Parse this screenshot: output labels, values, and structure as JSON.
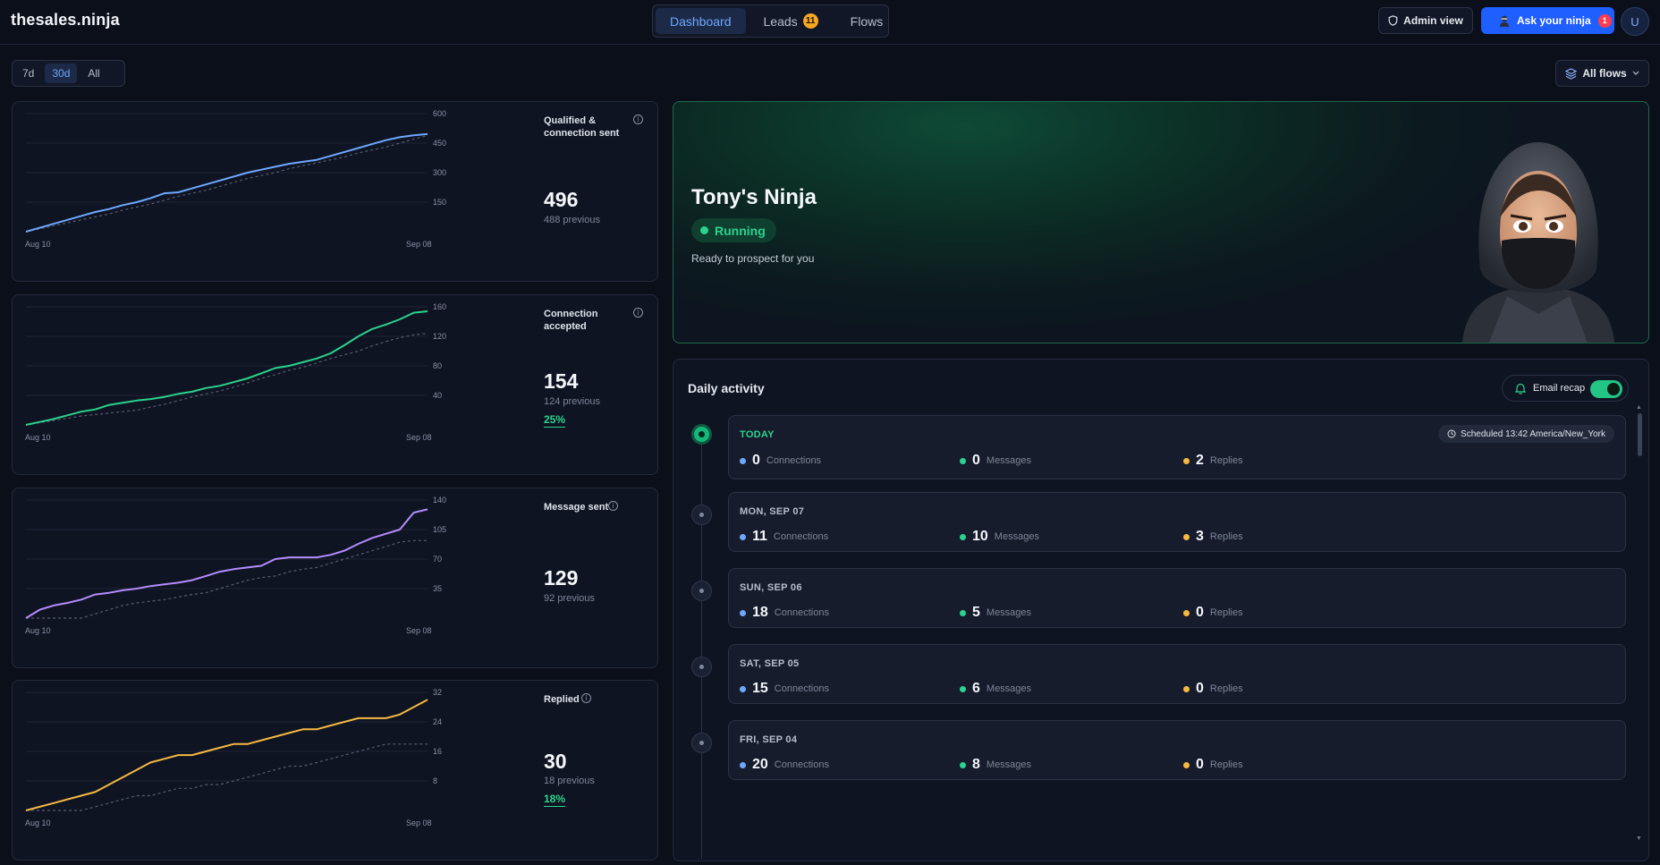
{
  "header": {
    "logo": "thesales.ninja",
    "tabs": [
      {
        "label": "Dashboard",
        "active": true
      },
      {
        "label": "Leads",
        "badge": "11"
      },
      {
        "label": "Flows"
      }
    ],
    "admin_label": "Admin view",
    "ask_label": "Ask your ninja",
    "ask_badge": "1",
    "avatar_initial": "U"
  },
  "filters": {
    "ranges": [
      "7d",
      "30d",
      "All"
    ],
    "active_range": "30d",
    "flows_label": "All flows"
  },
  "metrics": [
    {
      "title": "Qualified & connection sent",
      "value": "496",
      "previous": "488 previous",
      "percent": null,
      "color": "#6ea8ff",
      "y_ticks": [
        "600",
        "450",
        "300",
        "150"
      ],
      "x_start": "Aug 10",
      "x_end": "Sep 08"
    },
    {
      "title": "Connection accepted",
      "value": "154",
      "previous": "124 previous",
      "percent": "25%",
      "color": "#2bd38e",
      "y_ticks": [
        "160",
        "120",
        "80",
        "40"
      ],
      "x_start": "Aug 10",
      "x_end": "Sep 08"
    },
    {
      "title": "Message sent",
      "value": "129",
      "previous": "92 previous",
      "percent": null,
      "color": "#b58cff",
      "y_ticks": [
        "140",
        "105",
        "70",
        "35"
      ],
      "x_start": "Aug 10",
      "x_end": "Sep 08"
    },
    {
      "title": "Replied",
      "value": "30",
      "previous": "18 previous",
      "percent": "18%",
      "color": "#f5b942",
      "y_ticks": [
        "32",
        "24",
        "16",
        "8"
      ],
      "x_start": "Aug 10",
      "x_end": "Sep 08"
    }
  ],
  "hero": {
    "name": "Tony's Ninja",
    "status": "Running",
    "subtitle": "Ready to prospect for you"
  },
  "activity": {
    "title": "Daily activity",
    "recap_label": "Email recap",
    "recap_enabled": true,
    "days": [
      {
        "label": "TODAY",
        "today": true,
        "scheduled": "Scheduled 13:42 America/New_York",
        "connections": "0",
        "messages": "0",
        "replies": "2"
      },
      {
        "label": "MON, SEP 07",
        "connections": "11",
        "messages": "10",
        "replies": "3"
      },
      {
        "label": "SUN, SEP 06",
        "connections": "18",
        "messages": "5",
        "replies": "0"
      },
      {
        "label": "SAT, SEP 05",
        "connections": "15",
        "messages": "6",
        "replies": "0"
      },
      {
        "label": "FRI, SEP 04",
        "connections": "20",
        "messages": "8",
        "replies": "0"
      }
    ],
    "stat_labels": {
      "connections": "Connections",
      "messages": "Messages",
      "replies": "Replies"
    },
    "stat_colors": {
      "connections": "#6ea8ff",
      "messages": "#2bd38e",
      "replies": "#f5b942"
    }
  },
  "chart_data": [
    {
      "type": "line",
      "series": [
        {
          "values": [
            0,
            20,
            40,
            60,
            80,
            100,
            115,
            135,
            150,
            170,
            195,
            200,
            220,
            240,
            260,
            280,
            300,
            315,
            330,
            345,
            355,
            365,
            385,
            405,
            425,
            445,
            465,
            480,
            490,
            496
          ]
        },
        {
          "values": [
            0,
            15,
            30,
            45,
            60,
            75,
            90,
            110,
            125,
            140,
            160,
            180,
            195,
            210,
            230,
            250,
            270,
            285,
            300,
            320,
            335,
            350,
            365,
            380,
            400,
            415,
            430,
            450,
            470,
            488
          ]
        }
      ],
      "ylim": [
        0,
        600
      ]
    },
    {
      "type": "line",
      "series": [
        {
          "values": [
            0,
            4,
            8,
            13,
            18,
            21,
            27,
            30,
            33,
            35,
            38,
            42,
            45,
            50,
            53,
            58,
            63,
            70,
            77,
            80,
            85,
            90,
            97,
            108,
            120,
            130,
            136,
            143,
            152,
            154
          ]
        },
        {
          "values": [
            0,
            3,
            6,
            9,
            12,
            14,
            16,
            18,
            20,
            24,
            28,
            33,
            38,
            42,
            46,
            51,
            57,
            63,
            68,
            74,
            78,
            84,
            90,
            95,
            100,
            107,
            113,
            118,
            122,
            124
          ]
        }
      ],
      "ylim": [
        0,
        160
      ]
    },
    {
      "type": "line",
      "series": [
        {
          "values": [
            0,
            10,
            15,
            18,
            22,
            28,
            30,
            33,
            35,
            38,
            40,
            42,
            45,
            50,
            55,
            58,
            60,
            62,
            70,
            72,
            72,
            72,
            75,
            80,
            88,
            95,
            100,
            105,
            125,
            129
          ]
        },
        {
          "values": [
            0,
            0,
            0,
            0,
            0,
            5,
            10,
            15,
            18,
            20,
            22,
            25,
            28,
            30,
            35,
            40,
            45,
            48,
            50,
            55,
            58,
            60,
            65,
            70,
            75,
            80,
            85,
            90,
            92,
            92
          ]
        }
      ],
      "ylim": [
        0,
        140
      ]
    },
    {
      "type": "line",
      "series": [
        {
          "values": [
            0,
            1,
            2,
            3,
            4,
            5,
            7,
            9,
            11,
            13,
            14,
            15,
            15,
            16,
            17,
            18,
            18,
            19,
            20,
            21,
            22,
            22,
            23,
            24,
            25,
            25,
            25,
            26,
            28,
            30
          ]
        },
        {
          "values": [
            0,
            0,
            0,
            0,
            0,
            1,
            2,
            3,
            4,
            4,
            5,
            6,
            6,
            7,
            7,
            8,
            9,
            10,
            11,
            12,
            12,
            13,
            14,
            15,
            16,
            17,
            18,
            18,
            18,
            18
          ]
        }
      ],
      "ylim": [
        0,
        32
      ]
    }
  ]
}
